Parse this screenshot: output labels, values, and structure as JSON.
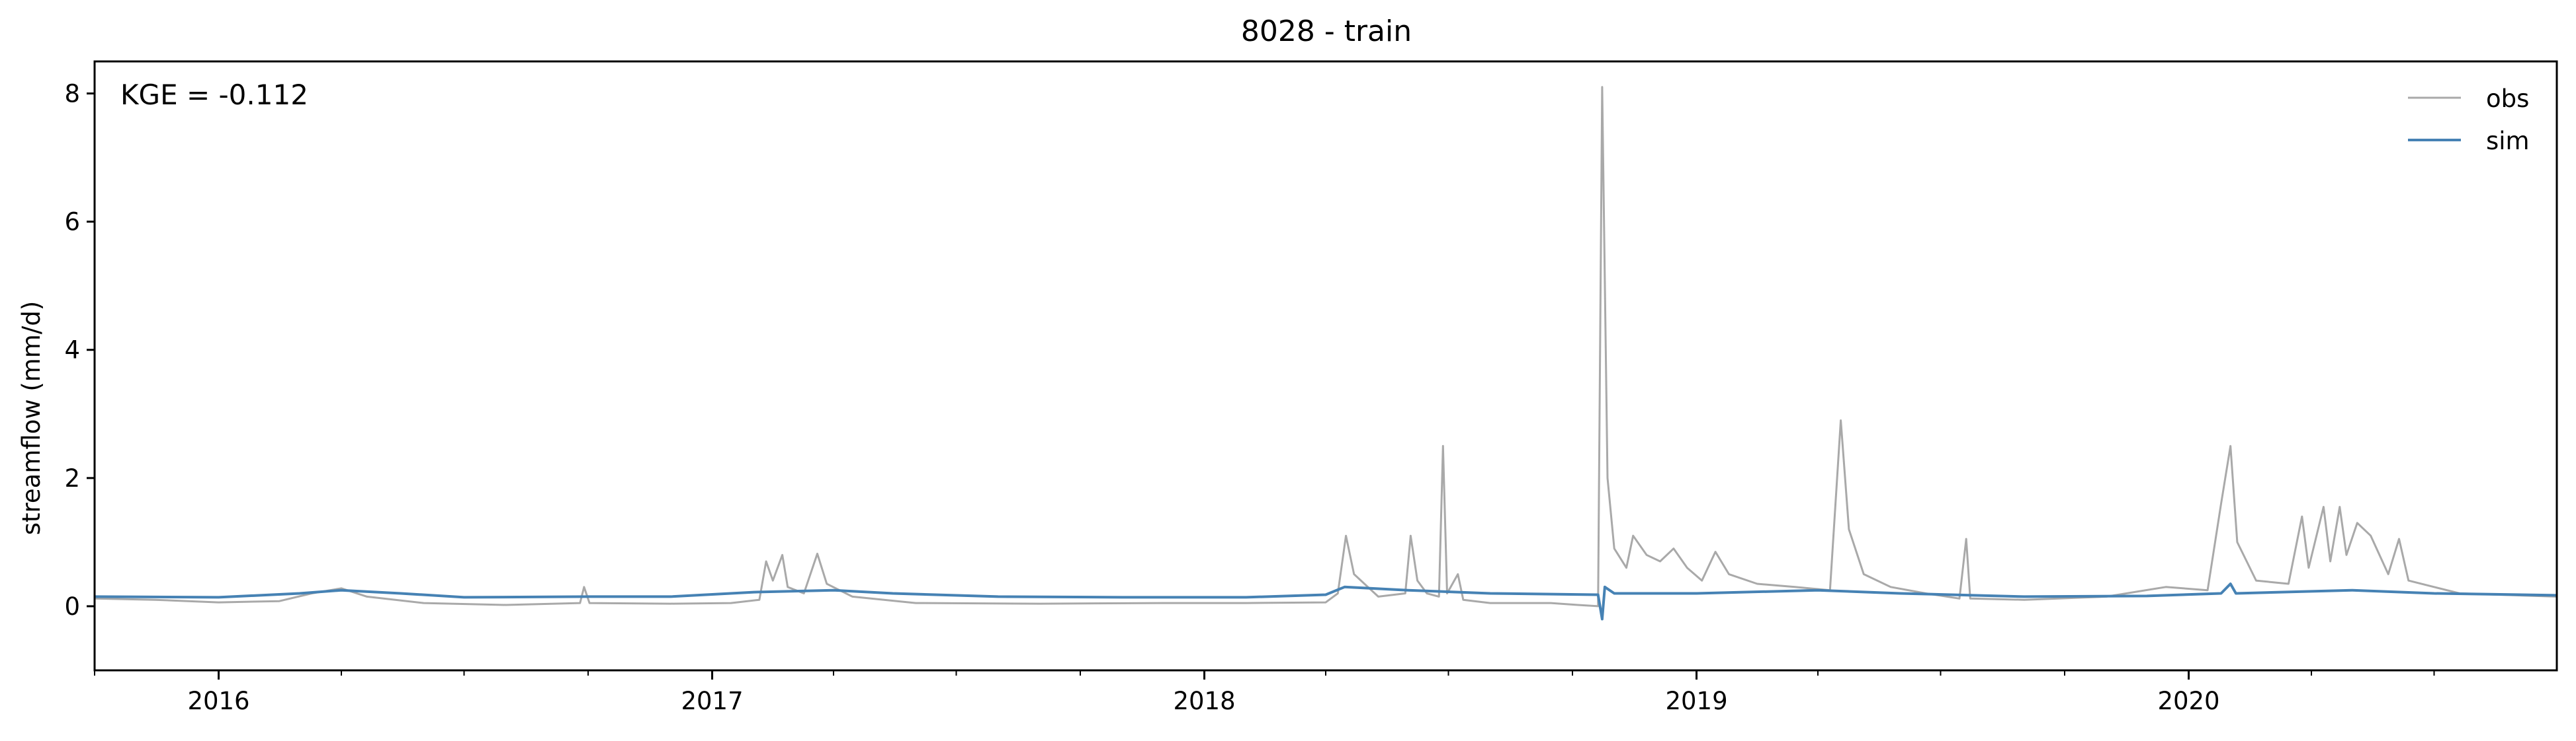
{
  "chart_data": {
    "type": "line",
    "title": "8028 - train",
    "xlabel": "",
    "ylabel": "streamflow (mm/d)",
    "annotation": "KGE = -0.112",
    "legend_position": "top-right",
    "grid": false,
    "x_range": [
      "2015-10-01",
      "2020-09-30"
    ],
    "ylim": [
      -1.0,
      8.5
    ],
    "y_ticks": [
      0,
      2,
      4,
      6,
      8
    ],
    "x_ticks": [
      {
        "date": "2016-01-01",
        "label": "2016"
      },
      {
        "date": "2017-01-01",
        "label": "2017"
      },
      {
        "date": "2018-01-01",
        "label": "2018"
      },
      {
        "date": "2019-01-01",
        "label": "2019"
      },
      {
        "date": "2020-01-01",
        "label": "2020"
      }
    ],
    "series": [
      {
        "name": "obs",
        "color": "#a9a9a9",
        "points": [
          [
            "2015-10-01",
            0.12
          ],
          [
            "2015-11-15",
            0.1
          ],
          [
            "2016-01-01",
            0.06
          ],
          [
            "2016-02-15",
            0.08
          ],
          [
            "2016-03-10",
            0.2
          ],
          [
            "2016-04-01",
            0.28
          ],
          [
            "2016-04-20",
            0.15
          ],
          [
            "2016-06-01",
            0.05
          ],
          [
            "2016-08-01",
            0.02
          ],
          [
            "2016-09-25",
            0.05
          ],
          [
            "2016-09-28",
            0.3
          ],
          [
            "2016-10-02",
            0.05
          ],
          [
            "2016-12-01",
            0.04
          ],
          [
            "2017-01-15",
            0.05
          ],
          [
            "2017-02-05",
            0.1
          ],
          [
            "2017-02-10",
            0.7
          ],
          [
            "2017-02-15",
            0.4
          ],
          [
            "2017-02-22",
            0.8
          ],
          [
            "2017-02-26",
            0.3
          ],
          [
            "2017-03-10",
            0.2
          ],
          [
            "2017-03-20",
            0.82
          ],
          [
            "2017-03-27",
            0.35
          ],
          [
            "2017-04-15",
            0.15
          ],
          [
            "2017-06-01",
            0.05
          ],
          [
            "2017-09-01",
            0.04
          ],
          [
            "2017-12-01",
            0.05
          ],
          [
            "2018-02-01",
            0.05
          ],
          [
            "2018-04-01",
            0.06
          ],
          [
            "2018-04-10",
            0.2
          ],
          [
            "2018-04-16",
            1.1
          ],
          [
            "2018-04-22",
            0.5
          ],
          [
            "2018-05-10",
            0.15
          ],
          [
            "2018-05-30",
            0.2
          ],
          [
            "2018-06-03",
            1.1
          ],
          [
            "2018-06-08",
            0.4
          ],
          [
            "2018-06-15",
            0.2
          ],
          [
            "2018-06-24",
            0.15
          ],
          [
            "2018-06-27",
            2.5
          ],
          [
            "2018-06-30",
            0.2
          ],
          [
            "2018-07-08",
            0.5
          ],
          [
            "2018-07-12",
            0.1
          ],
          [
            "2018-08-01",
            0.05
          ],
          [
            "2018-09-15",
            0.05
          ],
          [
            "2018-10-05",
            0.02
          ],
          [
            "2018-10-20",
            0.0
          ],
          [
            "2018-10-23",
            8.1
          ],
          [
            "2018-10-27",
            2.0
          ],
          [
            "2018-11-01",
            0.9
          ],
          [
            "2018-11-10",
            0.6
          ],
          [
            "2018-11-15",
            1.1
          ],
          [
            "2018-11-25",
            0.8
          ],
          [
            "2018-12-05",
            0.7
          ],
          [
            "2018-12-15",
            0.9
          ],
          [
            "2018-12-25",
            0.6
          ],
          [
            "2019-01-05",
            0.4
          ],
          [
            "2019-01-15",
            0.85
          ],
          [
            "2019-01-25",
            0.5
          ],
          [
            "2019-02-15",
            0.35
          ],
          [
            "2019-03-15",
            0.3
          ],
          [
            "2019-04-10",
            0.25
          ],
          [
            "2019-04-18",
            2.9
          ],
          [
            "2019-04-24",
            1.2
          ],
          [
            "2019-05-05",
            0.5
          ],
          [
            "2019-05-25",
            0.3
          ],
          [
            "2019-06-20",
            0.2
          ],
          [
            "2019-07-15",
            0.12
          ],
          [
            "2019-07-20",
            1.05
          ],
          [
            "2019-07-23",
            0.12
          ],
          [
            "2019-09-01",
            0.1
          ],
          [
            "2019-11-01",
            0.15
          ],
          [
            "2019-12-15",
            0.3
          ],
          [
            "2020-01-15",
            0.25
          ],
          [
            "2020-01-25",
            1.6
          ],
          [
            "2020-02-01",
            2.5
          ],
          [
            "2020-02-06",
            1.0
          ],
          [
            "2020-02-20",
            0.4
          ],
          [
            "2020-03-15",
            0.35
          ],
          [
            "2020-03-25",
            1.4
          ],
          [
            "2020-03-30",
            0.6
          ],
          [
            "2020-04-10",
            1.55
          ],
          [
            "2020-04-15",
            0.7
          ],
          [
            "2020-04-22",
            1.55
          ],
          [
            "2020-04-27",
            0.8
          ],
          [
            "2020-05-05",
            1.3
          ],
          [
            "2020-05-15",
            1.1
          ],
          [
            "2020-05-28",
            0.5
          ],
          [
            "2020-06-05",
            1.05
          ],
          [
            "2020-06-12",
            0.4
          ],
          [
            "2020-07-01",
            0.3
          ],
          [
            "2020-07-20",
            0.2
          ],
          [
            "2020-09-30",
            0.15
          ]
        ]
      },
      {
        "name": "sim",
        "color": "#4682b4",
        "points": [
          [
            "2015-10-01",
            0.15
          ],
          [
            "2016-01-01",
            0.14
          ],
          [
            "2016-03-01",
            0.2
          ],
          [
            "2016-04-01",
            0.25
          ],
          [
            "2016-05-15",
            0.2
          ],
          [
            "2016-07-01",
            0.14
          ],
          [
            "2016-10-01",
            0.15
          ],
          [
            "2016-12-01",
            0.15
          ],
          [
            "2017-02-01",
            0.22
          ],
          [
            "2017-04-01",
            0.25
          ],
          [
            "2017-05-15",
            0.2
          ],
          [
            "2017-08-01",
            0.15
          ],
          [
            "2017-11-01",
            0.14
          ],
          [
            "2018-02-01",
            0.14
          ],
          [
            "2018-04-01",
            0.18
          ],
          [
            "2018-04-15",
            0.3
          ],
          [
            "2018-06-01",
            0.25
          ],
          [
            "2018-08-01",
            0.2
          ],
          [
            "2018-10-20",
            0.18
          ],
          [
            "2018-10-23",
            -0.2
          ],
          [
            "2018-10-25",
            0.3
          ],
          [
            "2018-11-01",
            0.2
          ],
          [
            "2019-01-01",
            0.2
          ],
          [
            "2019-04-01",
            0.25
          ],
          [
            "2019-06-01",
            0.2
          ],
          [
            "2019-09-01",
            0.15
          ],
          [
            "2019-12-01",
            0.16
          ],
          [
            "2020-01-25",
            0.2
          ],
          [
            "2020-02-01",
            0.35
          ],
          [
            "2020-02-05",
            0.2
          ],
          [
            "2020-05-01",
            0.25
          ],
          [
            "2020-07-01",
            0.2
          ],
          [
            "2020-09-30",
            0.17
          ]
        ]
      }
    ]
  }
}
